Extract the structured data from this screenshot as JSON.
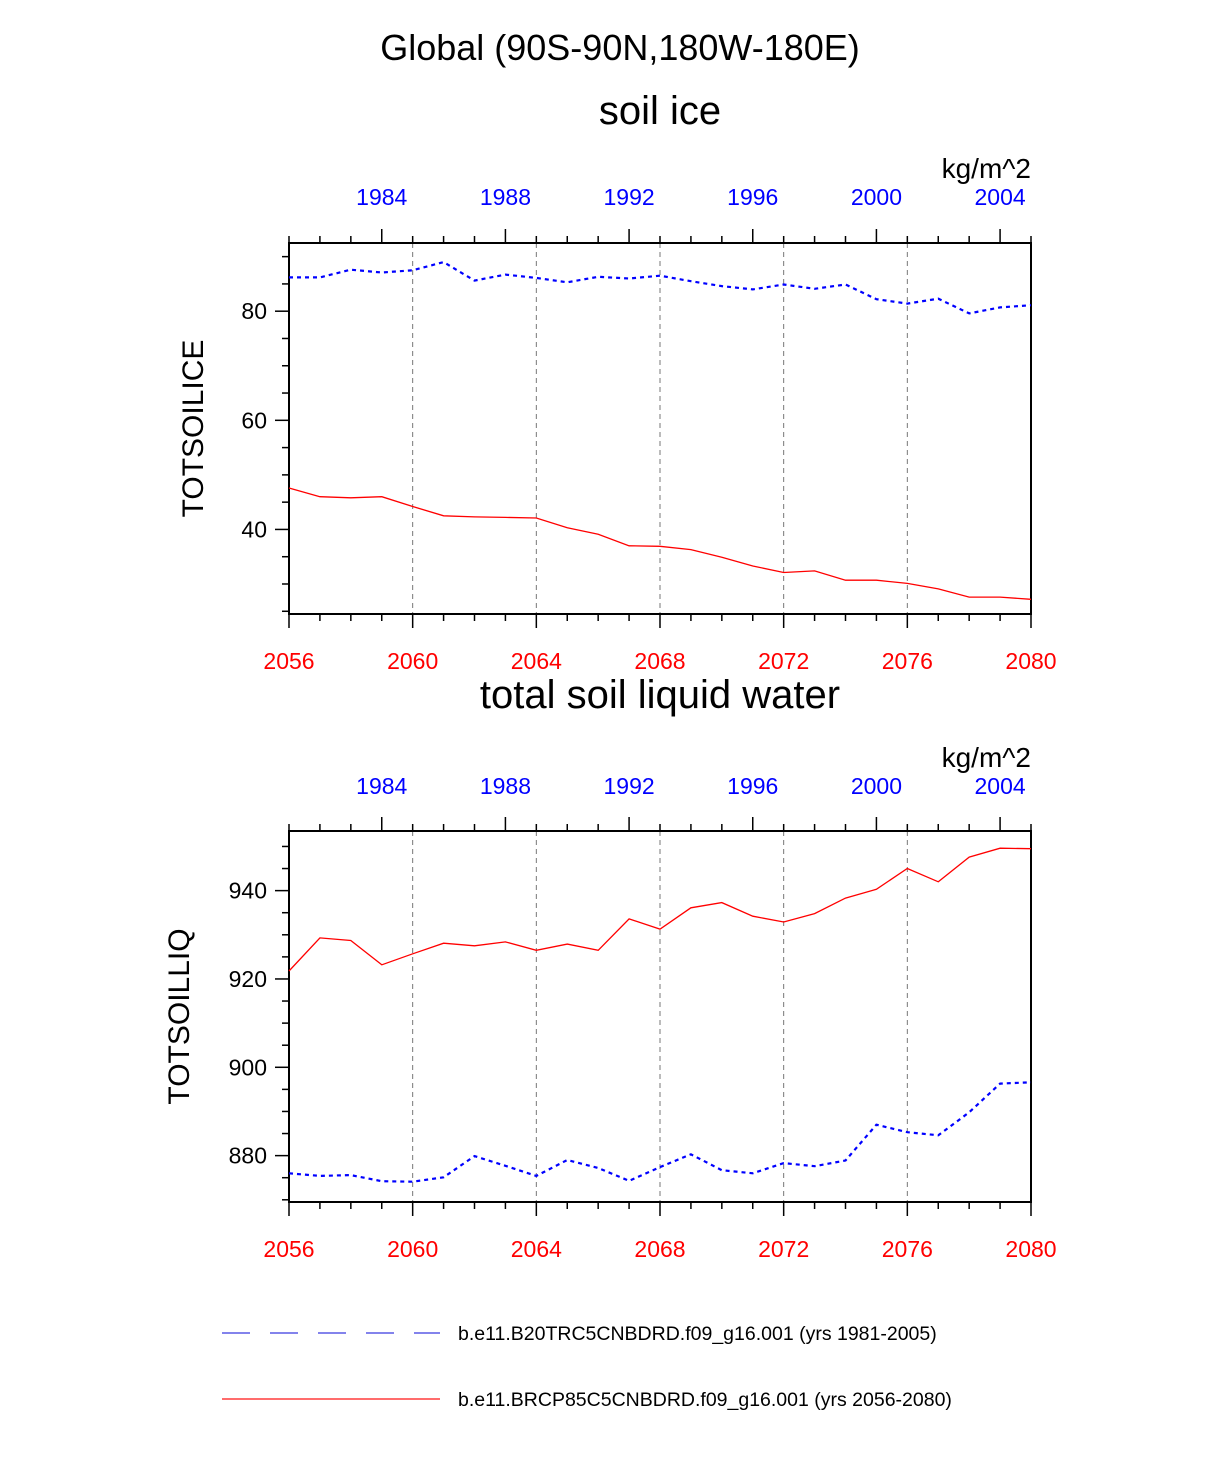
{
  "title": "Global (90S-90N,180W-180E)",
  "colors": {
    "past": "#0000ff",
    "future": "#ff0000",
    "legend_past": "#5a5ae6",
    "legend_future": "#ff3c3c"
  },
  "legend": [
    {
      "label": "b.e11.B20TRC5CNBDRD.f09_g16.001 (yrs 1981-2005)",
      "style": "dashed",
      "color": "#5a5ae6"
    },
    {
      "label": "b.e11.BRCP85C5CNBDRD.f09_g16.001 (yrs 2056-2080)",
      "style": "solid",
      "color": "#ff3c3c"
    }
  ],
  "chart_data": [
    {
      "type": "line",
      "title": "soil ice",
      "units": "kg/m^2",
      "ylabel": "TOTSOILICE",
      "ylim": [
        24.5,
        92.5
      ],
      "yticks": [
        40,
        60,
        80
      ],
      "bottom_axis": {
        "range": [
          2056,
          2080
        ],
        "ticks": [
          "2056",
          "2060",
          "2064",
          "2068",
          "2072",
          "2076",
          "2080"
        ]
      },
      "top_axis": {
        "range": [
          1981,
          2005
        ],
        "ticks": [
          "1984",
          "1988",
          "1992",
          "1996",
          "2000",
          "2004"
        ]
      },
      "series": [
        {
          "name": "b.e11.B20TRC5CNBDRD.f09_g16.001 (yrs 1981-2005)",
          "axis": "top",
          "style": "dashed",
          "color": "#0000ff",
          "x": [
            1981,
            1982,
            1983,
            1984,
            1985,
            1986,
            1987,
            1988,
            1989,
            1990,
            1991,
            1992,
            1993,
            1994,
            1995,
            1996,
            1997,
            1998,
            1999,
            2000,
            2001,
            2002,
            2003,
            2004,
            2005
          ],
          "values": [
            86.2,
            86.2,
            87.6,
            87.1,
            87.5,
            89.0,
            85.6,
            86.7,
            86.1,
            85.3,
            86.3,
            86.0,
            86.5,
            85.5,
            84.6,
            84.0,
            84.9,
            84.1,
            84.9,
            82.2,
            81.4,
            82.3,
            79.6,
            80.7,
            81.1
          ]
        },
        {
          "name": "b.e11.BRCP85C5CNBDRD.f09_g16.001 (yrs 2056-2080)",
          "axis": "bottom",
          "style": "solid",
          "color": "#ff0000",
          "x": [
            2056,
            2057,
            2058,
            2059,
            2060,
            2061,
            2062,
            2063,
            2064,
            2065,
            2066,
            2067,
            2068,
            2069,
            2070,
            2071,
            2072,
            2073,
            2074,
            2075,
            2076,
            2077,
            2078,
            2079,
            2080
          ],
          "values": [
            47.6,
            46.0,
            45.8,
            46.0,
            44.2,
            42.5,
            42.3,
            42.2,
            42.1,
            40.3,
            39.1,
            37.0,
            36.9,
            36.3,
            34.9,
            33.3,
            32.1,
            32.4,
            30.7,
            30.7,
            30.1,
            29.1,
            27.6,
            27.6,
            27.2
          ]
        }
      ]
    },
    {
      "type": "line",
      "title": "total soil liquid water",
      "units": "kg/m^2",
      "ylabel": "TOTSOILLIQ",
      "ylim": [
        869.5,
        953.5
      ],
      "yticks": [
        880,
        900,
        920,
        940
      ],
      "bottom_axis": {
        "range": [
          2056,
          2080
        ],
        "ticks": [
          "2056",
          "2060",
          "2064",
          "2068",
          "2072",
          "2076",
          "2080"
        ]
      },
      "top_axis": {
        "range": [
          1981,
          2005
        ],
        "ticks": [
          "1984",
          "1988",
          "1992",
          "1996",
          "2000",
          "2004"
        ]
      },
      "series": [
        {
          "name": "b.e11.B20TRC5CNBDRD.f09_g16.001 (yrs 1981-2005)",
          "axis": "top",
          "style": "dashed",
          "color": "#0000ff",
          "x": [
            1981,
            1982,
            1983,
            1984,
            1985,
            1986,
            1987,
            1988,
            1989,
            1990,
            1991,
            1992,
            1993,
            1994,
            1995,
            1996,
            1997,
            1998,
            1999,
            2000,
            2001,
            2002,
            2003,
            2004,
            2005
          ],
          "values": [
            876.0,
            875.4,
            875.6,
            874.2,
            874.1,
            875.1,
            879.9,
            877.7,
            875.4,
            879.0,
            877.2,
            874.3,
            877.4,
            880.3,
            876.7,
            876.0,
            878.3,
            877.6,
            878.9,
            887.0,
            885.3,
            884.6,
            889.8,
            896.3,
            896.6
          ]
        },
        {
          "name": "b.e11.BRCP85C5CNBDRD.f09_g16.001 (yrs 2056-2080)",
          "axis": "bottom",
          "style": "solid",
          "color": "#ff0000",
          "x": [
            2056,
            2057,
            2058,
            2059,
            2060,
            2061,
            2062,
            2063,
            2064,
            2065,
            2066,
            2067,
            2068,
            2069,
            2070,
            2071,
            2072,
            2073,
            2074,
            2075,
            2076,
            2077,
            2078,
            2079,
            2080
          ],
          "values": [
            921.8,
            929.3,
            928.7,
            923.2,
            925.7,
            928.1,
            927.5,
            928.4,
            926.5,
            927.9,
            926.5,
            933.6,
            931.3,
            936.1,
            937.3,
            934.2,
            932.9,
            934.8,
            938.3,
            940.3,
            945.0,
            942.0,
            947.6,
            949.6,
            949.5
          ]
        }
      ]
    }
  ]
}
